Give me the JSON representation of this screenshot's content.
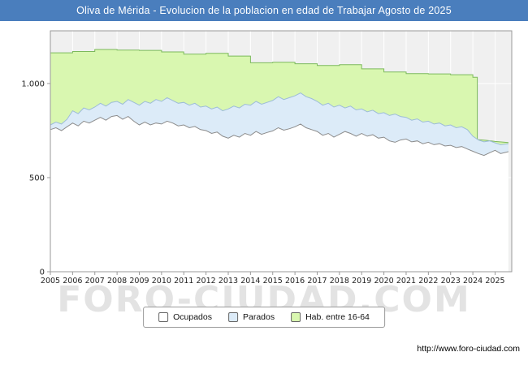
{
  "title": "Oliva de Mérida - Evolucion de la poblacion en edad de Trabajar Agosto de 2025",
  "watermark": "FORO-CIUDAD.COM",
  "footer": {
    "url": "http://www.foro-ciudad.com"
  },
  "colors": {
    "titlebar": "#4a7ebd",
    "plot_bg": "#f0f0f0",
    "grid": "#ffffff",
    "axis": "#9a9a9a",
    "tick_text": "#222222"
  },
  "legend": {
    "items": [
      {
        "label": "Ocupados",
        "series": "Ocupados"
      },
      {
        "label": "Parados",
        "series": "Parados"
      },
      {
        "label": "Hab. entre 16-64",
        "series": "Hab. entre 16-64"
      }
    ]
  },
  "chart_data": {
    "type": "area",
    "title": "Oliva de Mérida - Evolucion de la poblacion en edad de Trabajar Agosto de 2025",
    "xlabel": "",
    "ylabel": "",
    "xlim": [
      2005,
      2025.75
    ],
    "ylim": [
      0,
      1280
    ],
    "grid": true,
    "legend_position": "bottom",
    "yticks": [
      {
        "value": 0,
        "label": "0"
      },
      {
        "value": 500,
        "label": "500"
      },
      {
        "value": 1000,
        "label": "1.000"
      }
    ],
    "xticks": [
      2005,
      2006,
      2007,
      2008,
      2009,
      2010,
      2011,
      2012,
      2013,
      2014,
      2015,
      2016,
      2017,
      2018,
      2019,
      2020,
      2021,
      2022,
      2023,
      2024,
      2025
    ],
    "xtick_labels": [
      "2005",
      "2006",
      "2007",
      "2008",
      "2009",
      "2010",
      "2011",
      "2012",
      "2013",
      "2014",
      "2015",
      "2016",
      "2017",
      "2018",
      "2019",
      "2020",
      "2021",
      "2022",
      "2023",
      "2024",
      "2025"
    ],
    "series": [
      {
        "name": "Hab. entre 16-64",
        "fill": "#d9f7b0",
        "stroke": "#7cb95c",
        "points": [
          [
            2005,
            1163
          ],
          [
            2006,
            1163
          ],
          [
            2006,
            1170
          ],
          [
            2007,
            1170
          ],
          [
            2007,
            1181
          ],
          [
            2008,
            1181
          ],
          [
            2008,
            1178
          ],
          [
            2009,
            1178
          ],
          [
            2009,
            1176
          ],
          [
            2010,
            1176
          ],
          [
            2010,
            1168
          ],
          [
            2011,
            1168
          ],
          [
            2011,
            1156
          ],
          [
            2012,
            1156
          ],
          [
            2012,
            1160
          ],
          [
            2013,
            1160
          ],
          [
            2013,
            1146
          ],
          [
            2014,
            1146
          ],
          [
            2014,
            1110
          ],
          [
            2015,
            1110
          ],
          [
            2015,
            1113
          ],
          [
            2016,
            1113
          ],
          [
            2016,
            1105
          ],
          [
            2017,
            1105
          ],
          [
            2017,
            1096
          ],
          [
            2018,
            1096
          ],
          [
            2018,
            1100
          ],
          [
            2019,
            1100
          ],
          [
            2019,
            1078
          ],
          [
            2020,
            1078
          ],
          [
            2020,
            1061
          ],
          [
            2021,
            1061
          ],
          [
            2021,
            1053
          ],
          [
            2022,
            1053
          ],
          [
            2022,
            1051
          ],
          [
            2023,
            1051
          ],
          [
            2023,
            1047
          ],
          [
            2024,
            1047
          ],
          [
            2024,
            1033
          ],
          [
            2024.2,
            1033
          ],
          [
            2024.2,
            702
          ],
          [
            2024.6,
            698
          ],
          [
            2025,
            692
          ],
          [
            2025.6,
            686
          ]
        ]
      },
      {
        "name": "Parados",
        "fill": "#dcebf8",
        "stroke": "#9dbcd8",
        "points": [
          [
            2005,
            780
          ],
          [
            2005.25,
            795
          ],
          [
            2005.5,
            785
          ],
          [
            2005.75,
            810
          ],
          [
            2006,
            855
          ],
          [
            2006.25,
            840
          ],
          [
            2006.5,
            870
          ],
          [
            2006.75,
            860
          ],
          [
            2007,
            875
          ],
          [
            2007.25,
            895
          ],
          [
            2007.5,
            880
          ],
          [
            2007.75,
            900
          ],
          [
            2008,
            905
          ],
          [
            2008.25,
            890
          ],
          [
            2008.5,
            915
          ],
          [
            2008.75,
            900
          ],
          [
            2009,
            885
          ],
          [
            2009.25,
            905
          ],
          [
            2009.5,
            895
          ],
          [
            2009.75,
            915
          ],
          [
            2010,
            905
          ],
          [
            2010.25,
            925
          ],
          [
            2010.5,
            910
          ],
          [
            2010.75,
            895
          ],
          [
            2011,
            900
          ],
          [
            2011.25,
            885
          ],
          [
            2011.5,
            895
          ],
          [
            2011.75,
            875
          ],
          [
            2012,
            880
          ],
          [
            2012.25,
            865
          ],
          [
            2012.5,
            875
          ],
          [
            2012.75,
            855
          ],
          [
            2013,
            865
          ],
          [
            2013.25,
            880
          ],
          [
            2013.5,
            870
          ],
          [
            2013.75,
            890
          ],
          [
            2014,
            885
          ],
          [
            2014.25,
            905
          ],
          [
            2014.5,
            890
          ],
          [
            2014.75,
            900
          ],
          [
            2015,
            910
          ],
          [
            2015.25,
            930
          ],
          [
            2015.5,
            915
          ],
          [
            2015.75,
            925
          ],
          [
            2016,
            935
          ],
          [
            2016.25,
            950
          ],
          [
            2016.5,
            930
          ],
          [
            2016.75,
            920
          ],
          [
            2017,
            905
          ],
          [
            2017.25,
            885
          ],
          [
            2017.5,
            895
          ],
          [
            2017.75,
            875
          ],
          [
            2018,
            885
          ],
          [
            2018.25,
            870
          ],
          [
            2018.5,
            880
          ],
          [
            2018.75,
            860
          ],
          [
            2019,
            865
          ],
          [
            2019.25,
            850
          ],
          [
            2019.5,
            858
          ],
          [
            2019.75,
            840
          ],
          [
            2020,
            845
          ],
          [
            2020.25,
            830
          ],
          [
            2020.5,
            838
          ],
          [
            2020.75,
            825
          ],
          [
            2021,
            820
          ],
          [
            2021.25,
            805
          ],
          [
            2021.5,
            812
          ],
          [
            2021.75,
            795
          ],
          [
            2022,
            800
          ],
          [
            2022.25,
            785
          ],
          [
            2022.5,
            790
          ],
          [
            2022.75,
            775
          ],
          [
            2023,
            780
          ],
          [
            2023.25,
            765
          ],
          [
            2023.5,
            770
          ],
          [
            2023.75,
            755
          ],
          [
            2024,
            720
          ],
          [
            2024.25,
            700
          ],
          [
            2024.5,
            690
          ],
          [
            2024.75,
            695
          ],
          [
            2025,
            685
          ],
          [
            2025.25,
            675
          ],
          [
            2025.6,
            680
          ]
        ]
      },
      {
        "name": "Ocupados",
        "fill": "#ffffff",
        "stroke": "#8c8c8c",
        "points": [
          [
            2005,
            755
          ],
          [
            2005.25,
            765
          ],
          [
            2005.5,
            750
          ],
          [
            2005.75,
            770
          ],
          [
            2006,
            790
          ],
          [
            2006.25,
            775
          ],
          [
            2006.5,
            800
          ],
          [
            2006.75,
            790
          ],
          [
            2007,
            805
          ],
          [
            2007.25,
            820
          ],
          [
            2007.5,
            805
          ],
          [
            2007.75,
            825
          ],
          [
            2008,
            830
          ],
          [
            2008.25,
            810
          ],
          [
            2008.5,
            825
          ],
          [
            2008.75,
            800
          ],
          [
            2009,
            780
          ],
          [
            2009.25,
            795
          ],
          [
            2009.5,
            780
          ],
          [
            2009.75,
            790
          ],
          [
            2010,
            785
          ],
          [
            2010.25,
            800
          ],
          [
            2010.5,
            790
          ],
          [
            2010.75,
            775
          ],
          [
            2011,
            780
          ],
          [
            2011.25,
            765
          ],
          [
            2011.5,
            772
          ],
          [
            2011.75,
            755
          ],
          [
            2012,
            750
          ],
          [
            2012.25,
            735
          ],
          [
            2012.5,
            742
          ],
          [
            2012.75,
            720
          ],
          [
            2013,
            710
          ],
          [
            2013.25,
            725
          ],
          [
            2013.5,
            715
          ],
          [
            2013.75,
            735
          ],
          [
            2014,
            725
          ],
          [
            2014.25,
            745
          ],
          [
            2014.5,
            730
          ],
          [
            2014.75,
            740
          ],
          [
            2015,
            748
          ],
          [
            2015.25,
            765
          ],
          [
            2015.5,
            752
          ],
          [
            2015.75,
            760
          ],
          [
            2016,
            770
          ],
          [
            2016.25,
            785
          ],
          [
            2016.5,
            765
          ],
          [
            2016.75,
            755
          ],
          [
            2017,
            745
          ],
          [
            2017.25,
            725
          ],
          [
            2017.5,
            735
          ],
          [
            2017.75,
            715
          ],
          [
            2018,
            730
          ],
          [
            2018.25,
            745
          ],
          [
            2018.5,
            735
          ],
          [
            2018.75,
            720
          ],
          [
            2019,
            735
          ],
          [
            2019.25,
            720
          ],
          [
            2019.5,
            728
          ],
          [
            2019.75,
            710
          ],
          [
            2020,
            715
          ],
          [
            2020.25,
            695
          ],
          [
            2020.5,
            688
          ],
          [
            2020.75,
            700
          ],
          [
            2021,
            705
          ],
          [
            2021.25,
            690
          ],
          [
            2021.5,
            695
          ],
          [
            2021.75,
            680
          ],
          [
            2022,
            688
          ],
          [
            2022.25,
            675
          ],
          [
            2022.5,
            680
          ],
          [
            2022.75,
            668
          ],
          [
            2023,
            672
          ],
          [
            2023.25,
            660
          ],
          [
            2023.5,
            665
          ],
          [
            2023.75,
            652
          ],
          [
            2024,
            640
          ],
          [
            2024.25,
            628
          ],
          [
            2024.5,
            618
          ],
          [
            2024.75,
            632
          ],
          [
            2025,
            645
          ],
          [
            2025.25,
            628
          ],
          [
            2025.6,
            638
          ]
        ]
      }
    ]
  }
}
